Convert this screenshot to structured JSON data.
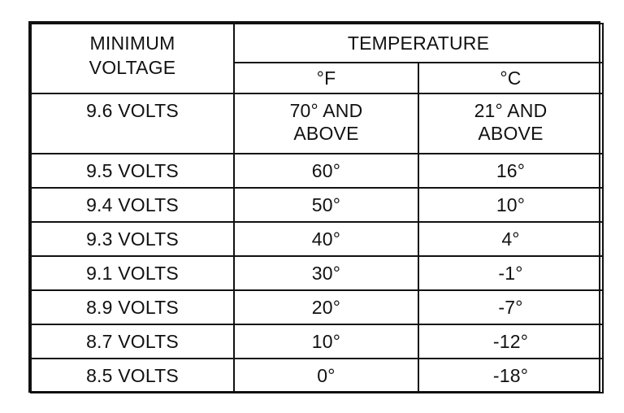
{
  "header": {
    "min_voltage_line1": "MINIMUM",
    "min_voltage_line2": "VOLTAGE",
    "temperature": "TEMPERATURE",
    "unit_f": "°F",
    "unit_c": "°C"
  },
  "rows": [
    {
      "voltage": "9.6 VOLTS",
      "f_line1": "70° AND",
      "f_line2": "ABOVE",
      "c_line1": "21° AND",
      "c_line2": "ABOVE"
    },
    {
      "voltage": "9.5 VOLTS",
      "f": "60°",
      "c": "16°"
    },
    {
      "voltage": "9.4 VOLTS",
      "f": "50°",
      "c": "10°"
    },
    {
      "voltage": "9.3 VOLTS",
      "f": "40°",
      "c": "4°"
    },
    {
      "voltage": "9.1 VOLTS",
      "f": "30°",
      "c": "-1°"
    },
    {
      "voltage": "8.9 VOLTS",
      "f": "20°",
      "c": "-7°"
    },
    {
      "voltage": "8.7 VOLTS",
      "f": "10°",
      "c": "-12°"
    },
    {
      "voltage": "8.5 VOLTS",
      "f": "0°",
      "c": "-18°"
    }
  ]
}
